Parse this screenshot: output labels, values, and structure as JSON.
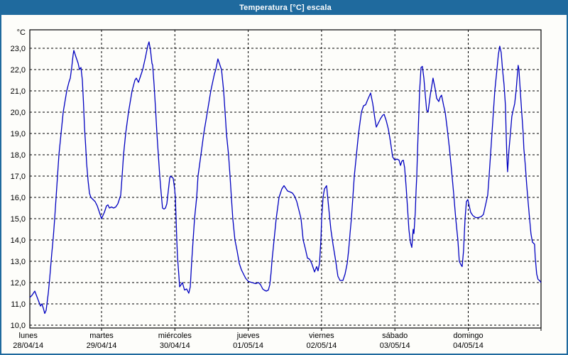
{
  "window": {
    "title": "Temperatura [°C] escala"
  },
  "colors": {
    "titlebar": "#1f6a9e",
    "line": "#0000c0",
    "grid": "#000000",
    "frame": "#000000",
    "background": "#fdfdfa",
    "label": "#000000"
  },
  "chart_data": {
    "type": "line",
    "title": "Temperatura [°C] escala",
    "ylabel": "°C",
    "xlabel": "",
    "ylim": [
      10,
      23
    ],
    "y_tick_step": 1,
    "y_tick_labels": [
      "10,0",
      "11,0",
      "12,0",
      "13,0",
      "14,0",
      "15,0",
      "16,0",
      "17,0",
      "18,0",
      "19,0",
      "20,0",
      "21,0",
      "22,0",
      "23,0"
    ],
    "grid": "dashed",
    "legend": "none",
    "x_axis": {
      "unit": "days from lunes 00:00",
      "visible_range_days": [
        0.022,
        6.993
      ],
      "days": [
        {
          "name": "lunes",
          "date": "28/04/14"
        },
        {
          "name": "martes",
          "date": "29/04/14"
        },
        {
          "name": "miércoles",
          "date": "30/04/14"
        },
        {
          "name": "jueves",
          "date": "01/05/14"
        },
        {
          "name": "viernes",
          "date": "02/05/14"
        },
        {
          "name": "sábado",
          "date": "03/05/14"
        },
        {
          "name": "domingo",
          "date": "04/05/14"
        }
      ]
    },
    "series": [
      {
        "name": "Temperatura [°C]",
        "color": "#0000c0",
        "points": [
          [
            0.022,
            11.3
          ],
          [
            0.051,
            11.4
          ],
          [
            0.09,
            11.6
          ],
          [
            0.129,
            11.25
          ],
          [
            0.167,
            10.9
          ],
          [
            0.187,
            11.0
          ],
          [
            0.206,
            10.8
          ],
          [
            0.226,
            10.55
          ],
          [
            0.245,
            10.7
          ],
          [
            0.274,
            11.5
          ],
          [
            0.293,
            12.2
          ],
          [
            0.322,
            13.4
          ],
          [
            0.342,
            14.1
          ],
          [
            0.361,
            15.0
          ],
          [
            0.38,
            16.0
          ],
          [
            0.4,
            17.0
          ],
          [
            0.419,
            18.0
          ],
          [
            0.448,
            19.0
          ],
          [
            0.477,
            20.0
          ],
          [
            0.526,
            21.0
          ],
          [
            0.555,
            21.4
          ],
          [
            0.574,
            21.6
          ],
          [
            0.593,
            22.1
          ],
          [
            0.613,
            22.7
          ],
          [
            0.622,
            22.9
          ],
          [
            0.651,
            22.6
          ],
          [
            0.681,
            22.3
          ],
          [
            0.7,
            22.0
          ],
          [
            0.719,
            22.1
          ],
          [
            0.739,
            21.5
          ],
          [
            0.753,
            20.5
          ],
          [
            0.768,
            19.3
          ],
          [
            0.782,
            18.5
          ],
          [
            0.797,
            17.6
          ],
          [
            0.816,
            16.8
          ],
          [
            0.835,
            16.2
          ],
          [
            0.855,
            16.0
          ],
          [
            0.884,
            15.9
          ],
          [
            0.913,
            15.8
          ],
          [
            0.942,
            15.6
          ],
          [
            0.971,
            15.3
          ],
          [
            1.0,
            15.0
          ],
          [
            1.039,
            15.3
          ],
          [
            1.068,
            15.6
          ],
          [
            1.087,
            15.65
          ],
          [
            1.107,
            15.5
          ],
          [
            1.136,
            15.55
          ],
          [
            1.165,
            15.5
          ],
          [
            1.194,
            15.55
          ],
          [
            1.223,
            15.7
          ],
          [
            1.242,
            15.9
          ],
          [
            1.261,
            16.1
          ],
          [
            1.281,
            17.0
          ],
          [
            1.3,
            18.0
          ],
          [
            1.329,
            19.0
          ],
          [
            1.368,
            20.0
          ],
          [
            1.416,
            21.0
          ],
          [
            1.455,
            21.5
          ],
          [
            1.474,
            21.6
          ],
          [
            1.503,
            21.4
          ],
          [
            1.532,
            21.7
          ],
          [
            1.561,
            22.0
          ],
          [
            1.6,
            22.6
          ],
          [
            1.629,
            23.1
          ],
          [
            1.648,
            23.3
          ],
          [
            1.668,
            22.9
          ],
          [
            1.687,
            22.3
          ],
          [
            1.697,
            22.2
          ],
          [
            1.716,
            21.3
          ],
          [
            1.736,
            20.2
          ],
          [
            1.755,
            19.0
          ],
          [
            1.774,
            18.0
          ],
          [
            1.794,
            17.0
          ],
          [
            1.813,
            16.2
          ],
          [
            1.832,
            15.5
          ],
          [
            1.852,
            15.45
          ],
          [
            1.871,
            15.5
          ],
          [
            1.891,
            15.7
          ],
          [
            1.91,
            16.3
          ],
          [
            1.929,
            16.9
          ],
          [
            1.939,
            17.0
          ],
          [
            1.958,
            16.95
          ],
          [
            1.977,
            16.9
          ],
          [
            1.997,
            16.4
          ],
          [
            2.007,
            16.0
          ],
          [
            2.016,
            15.0
          ],
          [
            2.026,
            14.0
          ],
          [
            2.036,
            13.2
          ],
          [
            2.055,
            12.3
          ],
          [
            2.065,
            11.8
          ],
          [
            2.084,
            11.9
          ],
          [
            2.103,
            12.0
          ],
          [
            2.132,
            11.65
          ],
          [
            2.161,
            11.7
          ],
          [
            2.19,
            11.5
          ],
          [
            2.21,
            11.8
          ],
          [
            2.229,
            13.0
          ],
          [
            2.249,
            14.0
          ],
          [
            2.268,
            15.0
          ],
          [
            2.297,
            16.0
          ],
          [
            2.316,
            17.0
          ],
          [
            2.355,
            18.0
          ],
          [
            2.394,
            19.0
          ],
          [
            2.442,
            20.0
          ],
          [
            2.49,
            21.0
          ],
          [
            2.539,
            21.8
          ],
          [
            2.558,
            22.0
          ],
          [
            2.587,
            22.5
          ],
          [
            2.616,
            22.2
          ],
          [
            2.636,
            22.0
          ],
          [
            2.665,
            21.0
          ],
          [
            2.684,
            20.0
          ],
          [
            2.694,
            19.5
          ],
          [
            2.703,
            19.0
          ],
          [
            2.732,
            18.0
          ],
          [
            2.752,
            17.0
          ],
          [
            2.771,
            16.0
          ],
          [
            2.79,
            15.0
          ],
          [
            2.819,
            14.0
          ],
          [
            2.848,
            13.5
          ],
          [
            2.878,
            12.9
          ],
          [
            2.907,
            12.6
          ],
          [
            2.936,
            12.4
          ],
          [
            2.965,
            12.2
          ],
          [
            3.004,
            12.05
          ],
          [
            3.052,
            12.0
          ],
          [
            3.1,
            11.95
          ],
          [
            3.139,
            12.0
          ],
          [
            3.168,
            11.9
          ],
          [
            3.197,
            11.7
          ],
          [
            3.217,
            11.65
          ],
          [
            3.246,
            11.6
          ],
          [
            3.275,
            11.65
          ],
          [
            3.294,
            11.9
          ],
          [
            3.313,
            12.5
          ],
          [
            3.323,
            13.0
          ],
          [
            3.352,
            14.0
          ],
          [
            3.381,
            15.0
          ],
          [
            3.42,
            16.0
          ],
          [
            3.459,
            16.4
          ],
          [
            3.488,
            16.55
          ],
          [
            3.517,
            16.4
          ],
          [
            3.536,
            16.3
          ],
          [
            3.575,
            16.25
          ],
          [
            3.604,
            16.2
          ],
          [
            3.633,
            16.05
          ],
          [
            3.662,
            15.8
          ],
          [
            3.691,
            15.4
          ],
          [
            3.72,
            15.0
          ],
          [
            3.749,
            14.0
          ],
          [
            3.778,
            13.6
          ],
          [
            3.807,
            13.15
          ],
          [
            3.836,
            13.1
          ],
          [
            3.865,
            12.9
          ],
          [
            3.904,
            12.5
          ],
          [
            3.933,
            12.75
          ],
          [
            3.952,
            12.55
          ],
          [
            3.972,
            12.9
          ],
          [
            3.991,
            14.0
          ],
          [
            4.001,
            15.0
          ],
          [
            4.02,
            16.0
          ],
          [
            4.04,
            16.4
          ],
          [
            4.069,
            16.55
          ],
          [
            4.098,
            15.5
          ],
          [
            4.127,
            14.5
          ],
          [
            4.156,
            13.8
          ],
          [
            4.194,
            13.0
          ],
          [
            4.223,
            12.3
          ],
          [
            4.252,
            12.1
          ],
          [
            4.291,
            12.1
          ],
          [
            4.32,
            12.4
          ],
          [
            4.349,
            12.9
          ],
          [
            4.369,
            13.5
          ],
          [
            4.388,
            14.3
          ],
          [
            4.407,
            15.0
          ],
          [
            4.427,
            16.0
          ],
          [
            4.446,
            17.0
          ],
          [
            4.475,
            18.0
          ],
          [
            4.504,
            19.0
          ],
          [
            4.543,
            20.0
          ],
          [
            4.572,
            20.3
          ],
          [
            4.601,
            20.35
          ],
          [
            4.63,
            20.6
          ],
          [
            4.669,
            20.9
          ],
          [
            4.698,
            20.4
          ],
          [
            4.727,
            19.7
          ],
          [
            4.746,
            19.3
          ],
          [
            4.775,
            19.5
          ],
          [
            4.804,
            19.7
          ],
          [
            4.833,
            19.85
          ],
          [
            4.853,
            19.9
          ],
          [
            4.882,
            19.6
          ],
          [
            4.911,
            19.2
          ],
          [
            4.94,
            18.6
          ],
          [
            4.969,
            17.9
          ],
          [
            4.998,
            17.75
          ],
          [
            5.027,
            17.8
          ],
          [
            5.056,
            17.75
          ],
          [
            5.076,
            17.5
          ],
          [
            5.095,
            17.7
          ],
          [
            5.114,
            17.75
          ],
          [
            5.133,
            17.4
          ],
          [
            5.153,
            16.5
          ],
          [
            5.172,
            15.5
          ],
          [
            5.191,
            14.5
          ],
          [
            5.211,
            13.9
          ],
          [
            5.23,
            13.65
          ],
          [
            5.249,
            14.5
          ],
          [
            5.259,
            14.3
          ],
          [
            5.278,
            15.3
          ],
          [
            5.288,
            16.3
          ],
          [
            5.298,
            17.0
          ],
          [
            5.307,
            18.0
          ],
          [
            5.317,
            19.0
          ],
          [
            5.337,
            21.0
          ],
          [
            5.356,
            22.1
          ],
          [
            5.375,
            22.15
          ],
          [
            5.395,
            21.6
          ],
          [
            5.414,
            20.8
          ],
          [
            5.433,
            20.1
          ],
          [
            5.452,
            20.0
          ],
          [
            5.482,
            20.8
          ],
          [
            5.501,
            21.2
          ],
          [
            5.52,
            21.6
          ],
          [
            5.549,
            21.1
          ],
          [
            5.569,
            20.65
          ],
          [
            5.598,
            20.5
          ],
          [
            5.617,
            20.7
          ],
          [
            5.636,
            20.8
          ],
          [
            5.665,
            20.3
          ],
          [
            5.685,
            20.0
          ],
          [
            5.714,
            19.2
          ],
          [
            5.743,
            18.3
          ],
          [
            5.772,
            17.3
          ],
          [
            5.801,
            16.2
          ],
          [
            5.83,
            15.0
          ],
          [
            5.859,
            14.0
          ],
          [
            5.878,
            13.0
          ],
          [
            5.898,
            12.85
          ],
          [
            5.917,
            12.75
          ],
          [
            5.936,
            13.5
          ],
          [
            5.956,
            15.0
          ],
          [
            5.975,
            15.8
          ],
          [
            5.994,
            15.9
          ],
          [
            6.014,
            15.6
          ],
          [
            6.033,
            15.3
          ],
          [
            6.062,
            15.15
          ],
          [
            6.101,
            15.05
          ],
          [
            6.139,
            15.05
          ],
          [
            6.178,
            15.1
          ],
          [
            6.207,
            15.2
          ],
          [
            6.227,
            15.5
          ],
          [
            6.246,
            15.8
          ],
          [
            6.265,
            16.1
          ],
          [
            6.285,
            17.0
          ],
          [
            6.304,
            18.0
          ],
          [
            6.323,
            19.0
          ],
          [
            6.343,
            20.0
          ],
          [
            6.362,
            21.0
          ],
          [
            6.391,
            22.0
          ],
          [
            6.41,
            22.7
          ],
          [
            6.43,
            23.1
          ],
          [
            6.449,
            22.8
          ],
          [
            6.468,
            22.0
          ],
          [
            6.488,
            21.3
          ],
          [
            6.507,
            20.3
          ],
          [
            6.517,
            19.0
          ],
          [
            6.526,
            18.0
          ],
          [
            6.536,
            17.2
          ],
          [
            6.555,
            18.2
          ],
          [
            6.575,
            19.0
          ],
          [
            6.594,
            19.8
          ],
          [
            6.613,
            20.1
          ],
          [
            6.633,
            20.4
          ],
          [
            6.652,
            21.0
          ],
          [
            6.671,
            21.8
          ],
          [
            6.681,
            22.2
          ],
          [
            6.691,
            22.0
          ],
          [
            6.71,
            21.0
          ],
          [
            6.729,
            20.0
          ],
          [
            6.749,
            19.0
          ],
          [
            6.758,
            18.3
          ],
          [
            6.778,
            17.5
          ],
          [
            6.797,
            16.6
          ],
          [
            6.816,
            15.8
          ],
          [
            6.836,
            15.0
          ],
          [
            6.855,
            14.3
          ],
          [
            6.875,
            13.9
          ],
          [
            6.904,
            13.8
          ],
          [
            6.913,
            13.2
          ],
          [
            6.933,
            12.4
          ],
          [
            6.952,
            12.15
          ],
          [
            6.972,
            12.1
          ],
          [
            6.991,
            12.0
          ]
        ]
      }
    ]
  }
}
